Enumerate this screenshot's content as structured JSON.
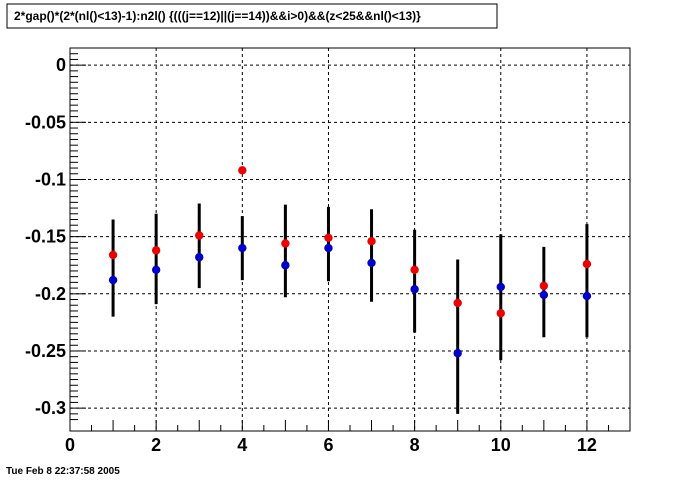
{
  "header": {
    "title": "2*gap()*(2*(nl()<13)-1):n2l() {(((j==12)||(j==14))&&i>0)&&(z<25&&nl()<13)}"
  },
  "footer": {
    "timestamp": "Tue Feb  8 22:37:58 2005"
  },
  "chart_data": {
    "type": "scatter",
    "title": "2*gap()*(2*(nl()<13)-1):n2l() {(((j==12)||(j==14))&&i>0)&&(z<25&&nl()<13)}",
    "xlabel": "",
    "ylabel": "",
    "xlim": [
      0,
      13
    ],
    "ylim": [
      -0.32,
      0.015
    ],
    "grid": true,
    "x_ticks": [
      0,
      2,
      4,
      6,
      8,
      10,
      12
    ],
    "x_tick_labels": [
      "0",
      "2",
      "4",
      "6",
      "8",
      "10",
      "12"
    ],
    "y_ticks": [
      0,
      -0.05,
      -0.1,
      -0.15,
      -0.2,
      -0.25,
      -0.3
    ],
    "y_tick_labels": [
      "0",
      "-0.05",
      "-0.1",
      "-0.15",
      "-0.2",
      "-0.25",
      "-0.3"
    ],
    "series": [
      {
        "color": "#0000cc",
        "x": [
          1,
          2,
          3,
          4,
          5,
          6,
          7,
          8,
          9,
          10,
          11,
          12
        ],
        "y": [
          -0.188,
          -0.179,
          -0.168,
          -0.16,
          -0.175,
          -0.16,
          -0.173,
          -0.196,
          -0.252,
          -0.194,
          -0.201,
          -0.202
        ],
        "err_low": [
          -0.22,
          -0.209,
          -0.195,
          -0.188,
          -0.203,
          -0.189,
          -0.207,
          -0.234,
          -0.305,
          -0.258,
          -0.238,
          -0.238
        ],
        "err_high": [
          -0.135,
          -0.13,
          -0.121,
          -0.132,
          -0.122,
          -0.124,
          -0.126,
          -0.144,
          -0.17,
          -0.148,
          -0.159,
          -0.139
        ]
      },
      {
        "color": "#ee0000",
        "x": [
          1,
          2,
          3,
          4,
          5,
          6,
          7,
          8,
          9,
          10,
          11,
          12
        ],
        "y": [
          -0.166,
          -0.162,
          -0.149,
          -0.092,
          -0.156,
          -0.151,
          -0.154,
          -0.179,
          -0.208,
          -0.217,
          -0.193,
          -0.174
        ]
      }
    ]
  }
}
